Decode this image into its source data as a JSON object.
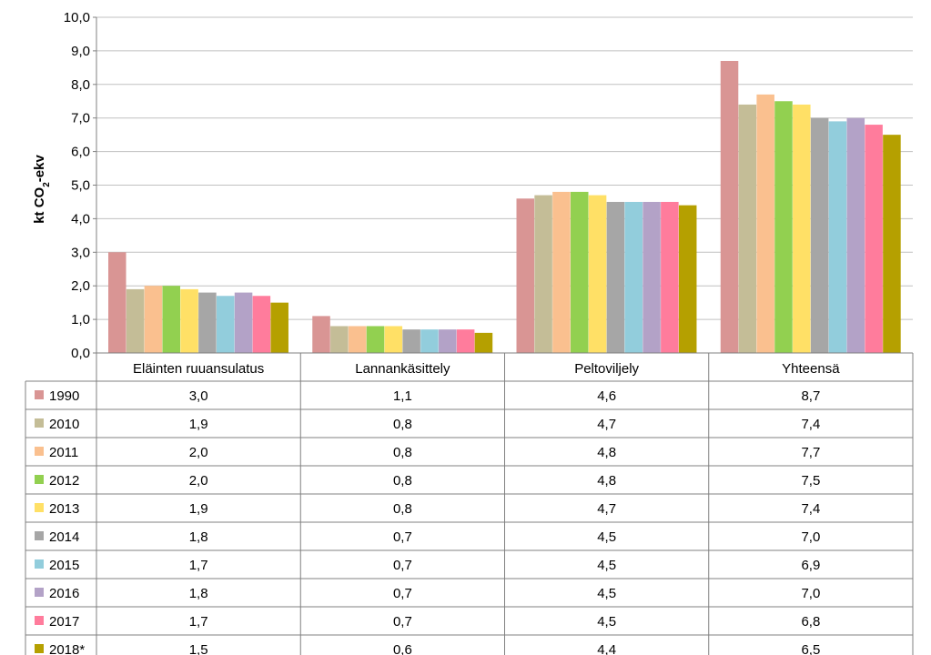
{
  "chart_data": {
    "type": "bar",
    "ylabel": {
      "main": "kt CO",
      "sub": "2",
      "rest": "-ekv"
    },
    "ylim": [
      0,
      10
    ],
    "yticks": [
      "0,0",
      "1,0",
      "2,0",
      "3,0",
      "4,0",
      "5,0",
      "6,0",
      "7,0",
      "8,0",
      "9,0",
      "10,0"
    ],
    "grid": true,
    "legend": "data-table-left",
    "categories": [
      "Eläinten ruuansulatus",
      "Lannankäsittely",
      "Peltoviljely",
      "Yhteensä"
    ],
    "series": [
      {
        "name": "1990",
        "color": "#d99594",
        "values": [
          3.0,
          1.1,
          4.6,
          8.7
        ],
        "labels": [
          "3,0",
          "1,1",
          "4,6",
          "8,7"
        ]
      },
      {
        "name": "2010",
        "color": "#c4bd97",
        "values": [
          1.9,
          0.8,
          4.7,
          7.4
        ],
        "labels": [
          "1,9",
          "0,8",
          "4,7",
          "7,4"
        ]
      },
      {
        "name": "2011",
        "color": "#fac08f",
        "values": [
          2.0,
          0.8,
          4.8,
          7.7
        ],
        "labels": [
          "2,0",
          "0,8",
          "4,8",
          "7,7"
        ]
      },
      {
        "name": "2012",
        "color": "#92d050",
        "values": [
          2.0,
          0.8,
          4.8,
          7.5
        ],
        "labels": [
          "2,0",
          "0,8",
          "4,8",
          "7,5"
        ]
      },
      {
        "name": "2013",
        "color": "#ffe066",
        "values": [
          1.9,
          0.8,
          4.7,
          7.4
        ],
        "labels": [
          "1,9",
          "0,8",
          "4,7",
          "7,4"
        ]
      },
      {
        "name": "2014",
        "color": "#a6a6a6",
        "values": [
          1.8,
          0.7,
          4.5,
          7.0
        ],
        "labels": [
          "1,8",
          "0,7",
          "4,5",
          "7,0"
        ]
      },
      {
        "name": "2015",
        "color": "#92cddc",
        "values": [
          1.7,
          0.7,
          4.5,
          6.9
        ],
        "labels": [
          "1,7",
          "0,7",
          "4,5",
          "6,9"
        ]
      },
      {
        "name": "2016",
        "color": "#b3a2c7",
        "values": [
          1.8,
          0.7,
          4.5,
          7.0
        ],
        "labels": [
          "1,8",
          "0,7",
          "4,5",
          "7,0"
        ]
      },
      {
        "name": "2017",
        "color": "#ff7c9c",
        "values": [
          1.7,
          0.7,
          4.5,
          6.8
        ],
        "labels": [
          "1,7",
          "0,7",
          "4,5",
          "6,8"
        ]
      },
      {
        "name": "2018*",
        "color": "#b5a000",
        "values": [
          1.5,
          0.6,
          4.4,
          6.5
        ],
        "labels": [
          "1,5",
          "0,6",
          "4,4",
          "6,5"
        ]
      }
    ]
  }
}
